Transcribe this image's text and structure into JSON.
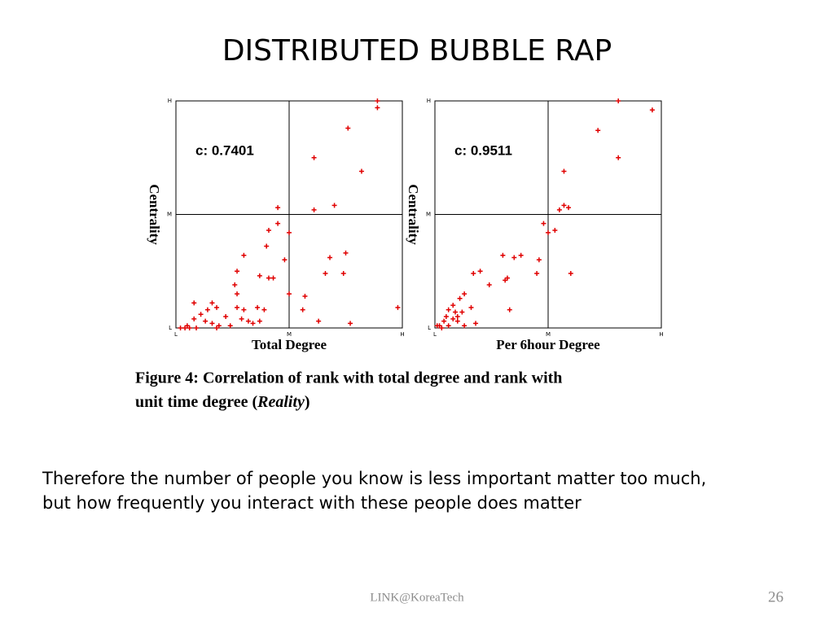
{
  "title": "DISTRIBUTED BUBBLE RAP",
  "chart_data": [
    {
      "type": "scatter",
      "annotation": "c: 0.7401",
      "xlabel": "Total Degree",
      "ylabel": "Centrality",
      "color": "#e00000",
      "xlim": [
        0,
        100
      ],
      "ylim": [
        0,
        100
      ],
      "xticks": [
        {
          "value": 0,
          "label": "L"
        },
        {
          "value": 50,
          "label": "M"
        },
        {
          "value": 100,
          "label": "H"
        }
      ],
      "yticks": [
        {
          "value": 0,
          "label": "L"
        },
        {
          "value": 50,
          "label": "M"
        },
        {
          "value": 100,
          "label": "H"
        }
      ],
      "grid": true,
      "x": [
        89,
        89,
        76,
        61,
        82,
        45,
        61,
        70,
        45,
        41,
        50,
        48,
        40,
        30,
        27,
        68,
        75,
        66,
        74,
        37,
        41,
        43,
        26,
        27,
        50,
        57,
        8,
        16,
        18,
        14,
        27,
        30,
        36,
        39,
        56,
        98,
        11,
        22,
        29,
        32,
        34,
        37,
        13,
        16,
        19,
        8,
        5,
        2,
        4,
        9,
        6,
        63,
        77,
        24,
        18
      ],
      "y": [
        100,
        97,
        88,
        75,
        69,
        53,
        52,
        54,
        46,
        43,
        42,
        30,
        36,
        32,
        25,
        31,
        33,
        24,
        24,
        23,
        22,
        22,
        19,
        15,
        15,
        14,
        11,
        11,
        9,
        8,
        9,
        8,
        9,
        8,
        8,
        9,
        6,
        5,
        4,
        3,
        2,
        3,
        3,
        2,
        1,
        4,
        1,
        0,
        0,
        0,
        0,
        3,
        2,
        1,
        0
      ]
    },
    {
      "type": "scatter",
      "annotation": "c: 0.9511",
      "xlabel": "Per 6hour Degree",
      "ylabel": "Centrality",
      "color": "#e00000",
      "xlim": [
        0,
        100
      ],
      "ylim": [
        0,
        100
      ],
      "xticks": [
        {
          "value": 0,
          "label": "L"
        },
        {
          "value": 50,
          "label": "M"
        },
        {
          "value": 100,
          "label": "H"
        }
      ],
      "yticks": [
        {
          "value": 0,
          "label": "L"
        },
        {
          "value": 50,
          "label": "M"
        },
        {
          "value": 100,
          "label": "H"
        }
      ],
      "grid": true,
      "x": [
        81,
        96,
        72,
        81,
        57,
        57,
        59,
        55,
        48,
        53,
        50,
        46,
        38,
        30,
        35,
        20,
        17,
        32,
        31,
        24,
        45,
        60,
        13,
        11,
        16,
        8,
        6,
        9,
        33,
        5,
        8,
        10,
        13,
        4,
        2,
        1,
        3,
        6,
        18,
        10,
        12
      ],
      "y": [
        100,
        96,
        87,
        75,
        69,
        54,
        53,
        52,
        46,
        43,
        42,
        30,
        32,
        32,
        31,
        25,
        24,
        22,
        21,
        19,
        24,
        24,
        15,
        13,
        9,
        10,
        8,
        7,
        8,
        5,
        4,
        3,
        1,
        3,
        1,
        1,
        0,
        1,
        2,
        5,
        7
      ]
    }
  ],
  "caption": {
    "line1": "Figure 4:  Correlation of rank with total degree and rank with",
    "line2_start": "unit time degree (",
    "emphasis": "Reality",
    "line2_end": ")"
  },
  "body": [
    "Therefore the number of people you know is less important matter too much,",
    "but how frequently you interact with these people does matter"
  ],
  "footer": "LINK@KoreaTech",
  "page_number": 26
}
